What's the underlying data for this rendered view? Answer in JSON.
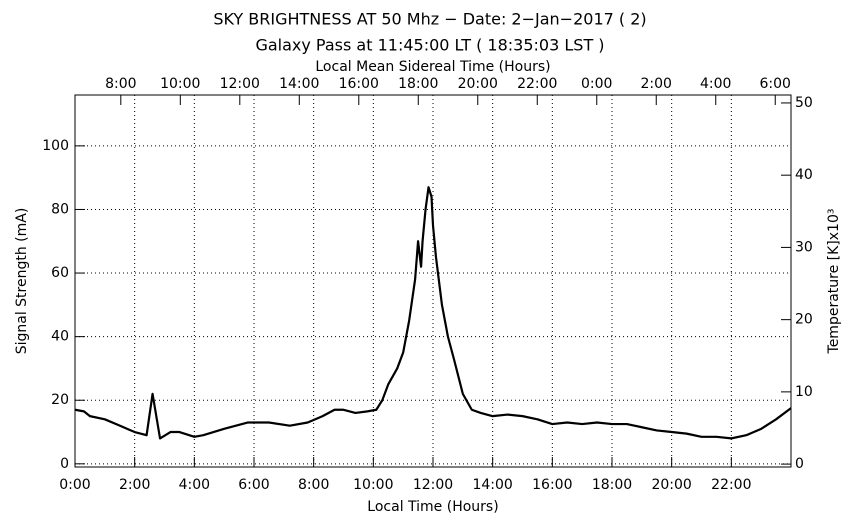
{
  "chart_data": {
    "type": "line",
    "title": "SKY BRIGHTNESS AT 50 Mhz − Date:  2−Jan−2017 (  2)",
    "subtitle": "Galaxy Pass at 11:45:00 LT  ( 18:35:03 LST )",
    "x_label": "Local Time (Hours)",
    "x2_label": "Local Mean Sidereal Time (Hours)",
    "y_label": "Signal Strength (mA)",
    "y2_label": "Temperature [K]x10³",
    "grid": true,
    "xlim": [
      0,
      24
    ],
    "xticks": [
      {
        "value": 0,
        "label": "0:00"
      },
      {
        "value": 2,
        "label": "2:00"
      },
      {
        "value": 4,
        "label": "4:00"
      },
      {
        "value": 6,
        "label": "6:00"
      },
      {
        "value": 8,
        "label": "8:00"
      },
      {
        "value": 10,
        "label": "10:00"
      },
      {
        "value": 12,
        "label": "12:00"
      },
      {
        "value": 14,
        "label": "14:00"
      },
      {
        "value": 16,
        "label": "16:00"
      },
      {
        "value": 18,
        "label": "18:00"
      },
      {
        "value": 20,
        "label": "20:00"
      },
      {
        "value": 22,
        "label": "22:00"
      }
    ],
    "x2lim": [
      6.46,
      30.53
    ],
    "x2ticks": [
      {
        "value": 8,
        "label": "8:00"
      },
      {
        "value": 10,
        "label": "10:00"
      },
      {
        "value": 12,
        "label": "12:00"
      },
      {
        "value": 14,
        "label": "14:00"
      },
      {
        "value": 16,
        "label": "16:00"
      },
      {
        "value": 18,
        "label": "18:00"
      },
      {
        "value": 20,
        "label": "20:00"
      },
      {
        "value": 22,
        "label": "22:00"
      },
      {
        "value": 24,
        "label": "0:00"
      },
      {
        "value": 26,
        "label": "2:00"
      },
      {
        "value": 28,
        "label": "4:00"
      },
      {
        "value": 30,
        "label": "6:00"
      }
    ],
    "ylim": [
      -1,
      116
    ],
    "yticks": [
      0,
      20,
      40,
      60,
      80,
      100
    ],
    "y2lim": [
      -0.4,
      51.1
    ],
    "y2ticks": [
      0,
      10,
      20,
      30,
      40,
      50
    ],
    "series": [
      {
        "color": "#000000",
        "x": [
          0,
          0.3,
          0.5,
          1,
          1.5,
          2,
          2.4,
          2.6,
          2.85,
          3.2,
          3.5,
          4,
          4.3,
          5,
          5.8,
          6.5,
          7.2,
          7.8,
          8.3,
          8.7,
          9.0,
          9.4,
          9.8,
          10.1,
          10.3,
          10.5,
          10.8,
          11.0,
          11.2,
          11.4,
          11.5,
          11.6,
          11.65,
          11.75,
          11.85,
          11.95,
          12.0,
          12.1,
          12.3,
          12.5,
          12.7,
          13.0,
          13.3,
          13.6,
          14.0,
          14.5,
          15.0,
          15.5,
          16.0,
          16.5,
          17.0,
          17.5,
          18.0,
          18.5,
          19.0,
          19.5,
          20.0,
          20.5,
          21.0,
          21.5,
          22.0,
          22.5,
          23.0,
          23.5,
          24
        ],
        "values": [
          17,
          16.5,
          15,
          14,
          12,
          10,
          9,
          22,
          8,
          10,
          10,
          8.5,
          9,
          11,
          13,
          13,
          12,
          13,
          15,
          17,
          17,
          16,
          16.5,
          17,
          20,
          25,
          30,
          35,
          45,
          58,
          70,
          62,
          70,
          80,
          87,
          84,
          75,
          65,
          50,
          40,
          33,
          22,
          17,
          16,
          15,
          15.5,
          15,
          14,
          12.5,
          13,
          12.5,
          13,
          12.5,
          12.5,
          11.5,
          10.5,
          10,
          9.5,
          8.5,
          8.5,
          8,
          9,
          11,
          14,
          17.5
        ]
      }
    ]
  }
}
